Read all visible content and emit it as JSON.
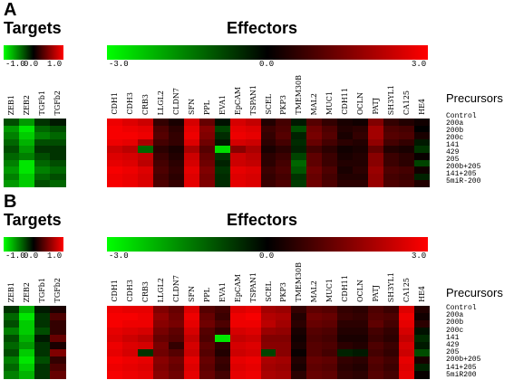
{
  "panels": [
    {
      "letter": "A",
      "targets_title": "Targets",
      "effectors_title": "Effectors",
      "precursors_title": "Precursors",
      "targets_scale": {
        "min": "-1.0",
        "mid": "0.0",
        "max": "1.0"
      },
      "effectors_scale": {
        "min": "-3.0",
        "mid": "0.0",
        "max": "3.0"
      },
      "target_columns": [
        "ZEB1",
        "ZEB2",
        "TGFb1",
        "TGFb2"
      ],
      "effector_columns": [
        "CDH1",
        "CDH3",
        "CRB3",
        "LLGL2",
        "CLDN7",
        "SFN",
        "PPL",
        "EVA1",
        "EpCAM",
        "TSPAN1",
        "SCEL",
        "PKP3",
        "TMEM30B",
        "MAL2",
        "MUC1",
        "CDH11",
        "OCLN",
        "PATJ",
        "SH3YL1",
        "CA125",
        "HE4"
      ],
      "rows": [
        "Control",
        "200a",
        "200b",
        "200c",
        "141",
        "429",
        "205",
        "200b+205",
        "141+205",
        "5miR-200"
      ]
    },
    {
      "letter": "B",
      "targets_title": "Targets",
      "effectors_title": "Effectors",
      "precursors_title": "Precursors",
      "targets_scale": {
        "min": "-1.0",
        "mid": "0.0",
        "max": "1.0"
      },
      "effectors_scale": {
        "min": "-3.0",
        "mid": "0.0",
        "max": "3.0"
      },
      "target_columns": [
        "ZEB1",
        "ZEB2",
        "TGFb1",
        "TGFb2"
      ],
      "effector_columns": [
        "CDH1",
        "CDH3",
        "CRB3",
        "LLGL2",
        "CLDN7",
        "SFN",
        "PPL",
        "EVA1",
        "EpCAM",
        "TSPAN1",
        "SCEL",
        "PKP3",
        "TMEM30B",
        "MAL2",
        "MUC1",
        "CDH11",
        "OCLN",
        "PATJ",
        "SH3YL1",
        "CA125",
        "HE4"
      ],
      "rows": [
        "Control",
        "200a",
        "200b",
        "200c",
        "141",
        "429",
        "205",
        "200b+205",
        "141+205",
        "5miR200"
      ]
    }
  ],
  "colors": {
    "low": "#00ff00",
    "mid": "#000000",
    "high": "#ff0000"
  },
  "chart_data": [
    {
      "type": "heatmap",
      "name": "A-targets",
      "scale": [
        -1.0,
        1.0
      ],
      "columns": [
        "ZEB1",
        "ZEB2",
        "TGFb1",
        "TGFb2"
      ],
      "rows": [
        "Control",
        "200a",
        "200b",
        "200c",
        "141",
        "429",
        "205",
        "200b+205",
        "141+205",
        "5miR-200"
      ],
      "values": [
        [
          -0.3,
          -0.6,
          -0.2,
          -0.1
        ],
        [
          -0.6,
          -0.9,
          -0.4,
          -0.3
        ],
        [
          -0.5,
          -0.8,
          -0.5,
          -0.4
        ],
        [
          -0.4,
          -0.7,
          -0.3,
          -0.3
        ],
        [
          -0.3,
          -0.6,
          -0.2,
          -0.2
        ],
        [
          -0.4,
          -0.5,
          -0.3,
          -0.2
        ],
        [
          -0.5,
          -0.9,
          -0.4,
          -0.3
        ],
        [
          -0.6,
          -0.9,
          -0.5,
          -0.4
        ],
        [
          -0.5,
          -0.8,
          -0.4,
          -0.3
        ],
        [
          -0.6,
          -0.8,
          -0.3,
          -0.4
        ]
      ]
    },
    {
      "type": "heatmap",
      "name": "A-effectors",
      "scale": [
        -3.0,
        3.0
      ],
      "columns": [
        "CDH1",
        "CDH3",
        "CRB3",
        "LLGL2",
        "CLDN7",
        "SFN",
        "PPL",
        "EVA1",
        "EpCAM",
        "TSPAN1",
        "SCEL",
        "PKP3",
        "TMEM30B",
        "MAL2",
        "MUC1",
        "CDH11",
        "OCLN",
        "PATJ",
        "SH3YL1",
        "CA125",
        "HE4"
      ],
      "rows": [
        "Control",
        "200a",
        "200b",
        "200c",
        "141",
        "429",
        "205",
        "200b+205",
        "141+205",
        "5miR-200"
      ],
      "values": [
        [
          2.8,
          2.6,
          2.4,
          0.6,
          0.3,
          2.5,
          1.2,
          -0.2,
          2.5,
          2.3,
          0.4,
          0.8,
          -0.3,
          1.0,
          0.6,
          0.3,
          0.2,
          1.5,
          0.6,
          0.4,
          0.2
        ],
        [
          2.9,
          2.8,
          2.7,
          0.9,
          0.5,
          2.7,
          1.6,
          -0.8,
          2.7,
          2.6,
          0.7,
          0.9,
          -0.9,
          1.3,
          0.9,
          0.4,
          0.5,
          1.9,
          0.9,
          0.8,
          0.0
        ],
        [
          2.9,
          2.9,
          2.8,
          1.0,
          0.6,
          2.8,
          1.5,
          -0.5,
          2.8,
          2.7,
          0.6,
          1.0,
          -0.4,
          1.4,
          1.0,
          0.3,
          0.6,
          1.9,
          1.0,
          0.9,
          0.3
        ],
        [
          2.8,
          2.7,
          2.0,
          0.8,
          0.6,
          2.6,
          1.3,
          -0.3,
          2.5,
          2.4,
          0.5,
          0.8,
          -0.5,
          1.2,
          0.8,
          0.5,
          0.4,
          1.7,
          0.8,
          0.6,
          -0.3
        ],
        [
          2.4,
          2.2,
          -1.2,
          0.5,
          0.3,
          2.0,
          1.0,
          -2.6,
          1.6,
          2.0,
          0.3,
          0.5,
          -0.4,
          0.8,
          0.5,
          0.2,
          0.3,
          1.2,
          0.4,
          0.3,
          -0.6
        ],
        [
          2.6,
          2.5,
          2.3,
          0.7,
          0.4,
          2.4,
          1.2,
          -0.6,
          2.4,
          2.2,
          0.5,
          0.7,
          -0.8,
          1.1,
          0.7,
          0.3,
          0.4,
          1.6,
          0.7,
          0.5,
          0.1
        ],
        [
          2.7,
          2.6,
          2.2,
          0.8,
          0.5,
          2.5,
          1.3,
          -0.4,
          2.4,
          2.3,
          0.5,
          0.8,
          -1.2,
          1.1,
          0.7,
          0.4,
          0.4,
          1.6,
          0.7,
          0.5,
          -0.8
        ],
        [
          2.9,
          2.8,
          2.6,
          0.9,
          0.6,
          2.7,
          1.5,
          -0.6,
          2.7,
          2.6,
          0.7,
          0.9,
          -1.0,
          1.3,
          0.9,
          0.3,
          0.5,
          1.8,
          0.9,
          0.8,
          0.2
        ],
        [
          2.8,
          2.7,
          2.5,
          0.8,
          0.5,
          2.6,
          1.4,
          -0.5,
          2.6,
          2.5,
          0.6,
          0.8,
          -0.6,
          1.2,
          0.8,
          0.4,
          0.4,
          1.7,
          0.8,
          0.7,
          -0.4
        ],
        [
          2.9,
          2.8,
          2.6,
          0.9,
          0.6,
          2.7,
          1.5,
          -0.5,
          2.7,
          2.6,
          0.7,
          0.9,
          -0.7,
          1.3,
          0.9,
          0.5,
          0.5,
          1.8,
          0.9,
          0.8,
          0.4
        ]
      ]
    },
    {
      "type": "heatmap",
      "name": "B-targets",
      "scale": [
        -1.0,
        1.0
      ],
      "columns": [
        "ZEB1",
        "ZEB2",
        "TGFb1",
        "TGFb2"
      ],
      "rows": [
        "Control",
        "200a",
        "200b",
        "200c",
        "141",
        "429",
        "205",
        "200b+205",
        "141+205",
        "5miR200"
      ],
      "values": [
        [
          -0.2,
          -0.7,
          -0.1,
          0.1
        ],
        [
          -0.4,
          -0.9,
          -0.2,
          0.3
        ],
        [
          -0.3,
          -0.8,
          -0.2,
          0.2
        ],
        [
          -0.5,
          -0.8,
          -0.3,
          0.2
        ],
        [
          -0.3,
          -0.7,
          -0.1,
          0.4
        ],
        [
          -0.4,
          -0.6,
          -0.2,
          0.1
        ],
        [
          -0.3,
          -0.8,
          -0.2,
          0.5
        ],
        [
          -0.5,
          -0.9,
          -0.3,
          0.2
        ],
        [
          -0.4,
          -0.8,
          -0.2,
          0.3
        ],
        [
          -0.5,
          -0.7,
          -0.2,
          0.4
        ]
      ]
    },
    {
      "type": "heatmap",
      "name": "B-effectors",
      "scale": [
        -3.0,
        3.0
      ],
      "columns": [
        "CDH1",
        "CDH3",
        "CRB3",
        "LLGL2",
        "CLDN7",
        "SFN",
        "PPL",
        "EVA1",
        "EpCAM",
        "TSPAN1",
        "SCEL",
        "PKP3",
        "TMEM30B",
        "MAL2",
        "MUC1",
        "CDH11",
        "OCLN",
        "PATJ",
        "SH3YL1",
        "CA125",
        "HE4"
      ],
      "rows": [
        "Control",
        "200a",
        "200b",
        "200c",
        "141",
        "429",
        "205",
        "200b+205",
        "141+205",
        "5miR200"
      ],
      "values": [
        [
          2.8,
          2.7,
          2.7,
          1.5,
          1.2,
          2.6,
          1.0,
          0.8,
          2.6,
          2.7,
          1.9,
          1.8,
          0.6,
          1.1,
          1.0,
          0.6,
          0.5,
          0.9,
          0.7,
          2.6,
          0.4
        ],
        [
          2.9,
          2.9,
          2.8,
          1.7,
          1.3,
          2.8,
          1.2,
          0.7,
          2.8,
          2.9,
          2.1,
          2.0,
          0.4,
          1.3,
          1.2,
          0.7,
          0.6,
          1.0,
          0.9,
          2.8,
          0.2
        ],
        [
          2.9,
          2.8,
          2.8,
          1.6,
          1.4,
          2.7,
          1.3,
          0.9,
          2.8,
          2.8,
          2.2,
          1.9,
          0.5,
          1.2,
          1.1,
          0.5,
          0.5,
          1.1,
          0.8,
          2.7,
          0.5
        ],
        [
          2.7,
          2.6,
          2.5,
          1.4,
          1.1,
          2.5,
          1.0,
          0.6,
          2.5,
          2.6,
          1.8,
          1.7,
          0.3,
          1.0,
          0.9,
          0.4,
          0.4,
          0.8,
          0.6,
          2.5,
          -0.2
        ],
        [
          2.6,
          2.4,
          2.2,
          1.2,
          1.0,
          2.3,
          0.9,
          -2.7,
          2.3,
          2.4,
          1.5,
          1.5,
          0.2,
          0.9,
          0.8,
          0.3,
          0.3,
          0.7,
          0.5,
          2.3,
          -0.5
        ],
        [
          2.8,
          2.6,
          2.5,
          1.4,
          0.6,
          2.5,
          1.1,
          0.5,
          2.5,
          2.6,
          1.6,
          1.6,
          0.3,
          1.0,
          0.9,
          0.5,
          0.4,
          0.9,
          0.7,
          2.5,
          -0.3
        ],
        [
          2.7,
          2.5,
          -0.6,
          1.3,
          1.0,
          2.4,
          1.0,
          0.4,
          2.4,
          2.5,
          -0.8,
          1.6,
          0.1,
          1.0,
          0.8,
          -0.4,
          -0.3,
          0.8,
          0.6,
          2.4,
          -0.9
        ],
        [
          2.9,
          2.8,
          2.7,
          1.6,
          1.3,
          2.7,
          1.2,
          0.7,
          2.7,
          2.8,
          2.0,
          1.9,
          0.4,
          1.2,
          1.1,
          0.6,
          0.5,
          1.0,
          0.8,
          2.7,
          0.3
        ],
        [
          2.8,
          2.7,
          2.6,
          1.5,
          1.2,
          2.6,
          1.1,
          0.6,
          2.6,
          2.7,
          1.9,
          1.8,
          0.3,
          1.1,
          1.0,
          0.5,
          0.4,
          0.9,
          0.7,
          2.6,
          -0.4
        ],
        [
          2.9,
          2.8,
          2.7,
          1.6,
          1.3,
          2.7,
          1.2,
          0.8,
          2.7,
          2.8,
          2.0,
          1.9,
          0.5,
          1.2,
          1.1,
          0.6,
          0.5,
          1.0,
          0.8,
          2.7,
          0.1
        ]
      ]
    }
  ]
}
